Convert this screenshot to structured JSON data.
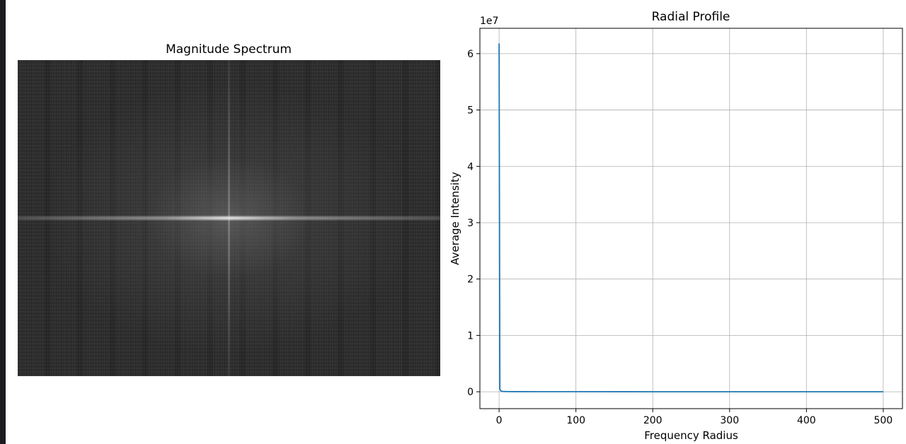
{
  "panels": {
    "spectrum": {
      "title": "Magnitude Spectrum",
      "type": "image",
      "colormap": "gray"
    }
  },
  "chart_data": {
    "type": "line",
    "title": "Radial Profile",
    "xlabel": "Frequency Radius",
    "ylabel": "Average Intensity",
    "y_offset_text": "1e7",
    "xlim": [
      -25,
      525
    ],
    "ylim": [
      -0.3,
      6.45
    ],
    "y_scale_factor": 10000000,
    "xticks": [
      0,
      100,
      200,
      300,
      400,
      500
    ],
    "yticks": [
      0,
      1,
      2,
      3,
      4,
      5,
      6
    ],
    "grid": true,
    "series": [
      {
        "color": "#1f77b4",
        "x": [
          0,
          1,
          2,
          3,
          5,
          10,
          20,
          50,
          100,
          200,
          300,
          400,
          500
        ],
        "y": [
          6.18,
          0.05,
          0.02,
          0.01,
          0.005,
          0.003,
          0.002,
          0.001,
          0.001,
          0.0,
          0.0,
          0.0,
          0.0
        ]
      }
    ]
  }
}
